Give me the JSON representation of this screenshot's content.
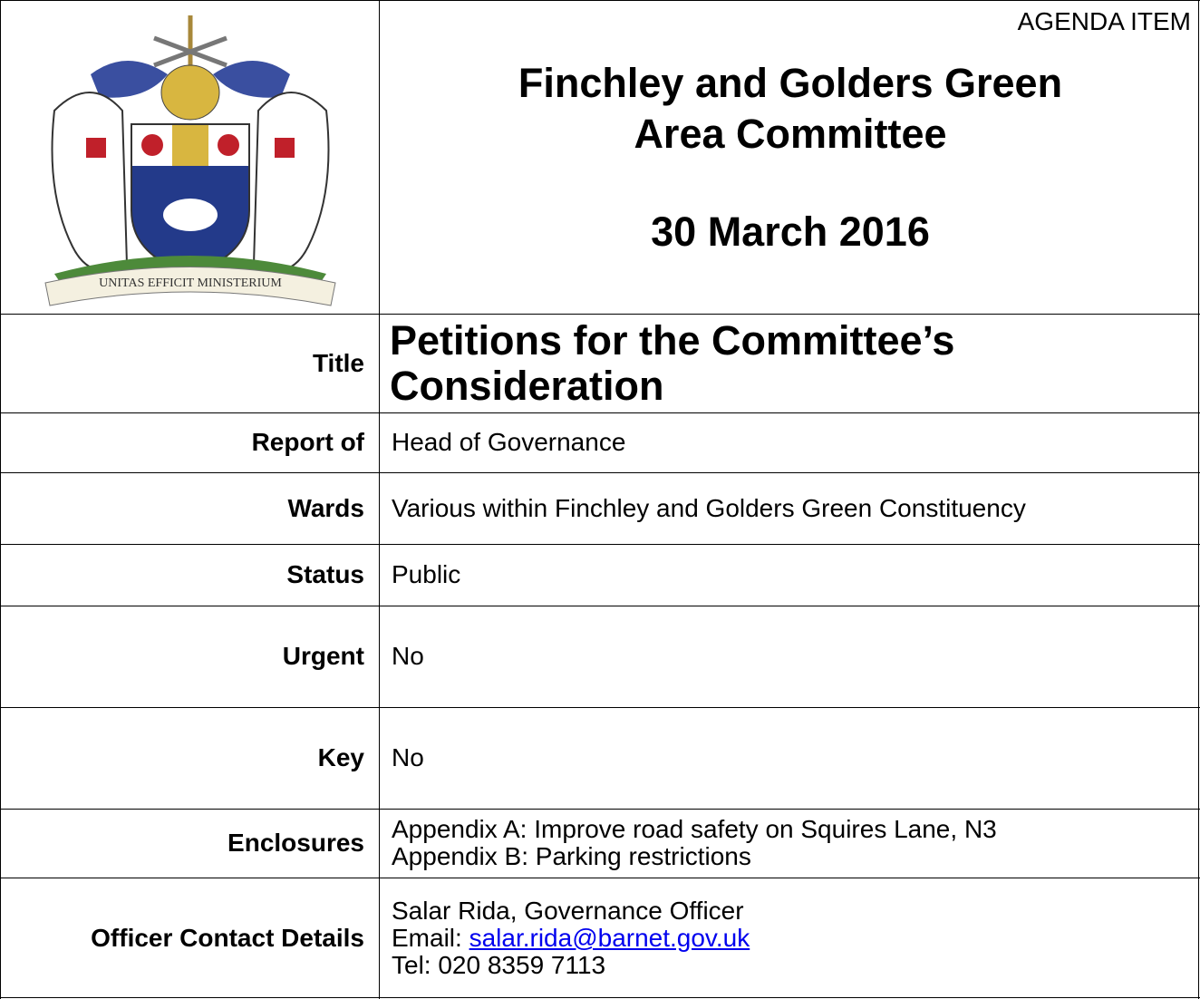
{
  "header": {
    "agenda_item": "AGENDA ITEM",
    "committee_lines": [
      "Finchley and Golders Green",
      "Area Committee"
    ],
    "date": "30 March 2016",
    "motto": "UNITAS EFFICIT MINISTERIUM"
  },
  "rows": [
    {
      "label": "Title",
      "lines": [
        "Petitions for the Committee’s",
        "Consideration"
      ]
    },
    {
      "label": "Report of",
      "lines": [
        "Head of Governance"
      ]
    },
    {
      "label": "Wards",
      "lines": [
        "Various within Finchley and Golders Green Constituency"
      ]
    },
    {
      "label": "Status",
      "lines": [
        "Public"
      ]
    },
    {
      "label": "Urgent",
      "lines": [
        "No"
      ]
    },
    {
      "label": "Key",
      "lines": [
        "No"
      ]
    },
    {
      "label": "Enclosures",
      "lines": [
        "Appendix A:  Improve road safety on Squires Lane, N3",
        "Appendix B: Parking restrictions"
      ]
    },
    {
      "label": "Officer Contact Details",
      "lines": [
        "Salar Rida, Governance Officer",
        {
          "prefix": "Email:",
          "link": "salar.rida@barnet.gov.uk"
        },
        "Tel: 020 8359 7113"
      ]
    }
  ]
}
